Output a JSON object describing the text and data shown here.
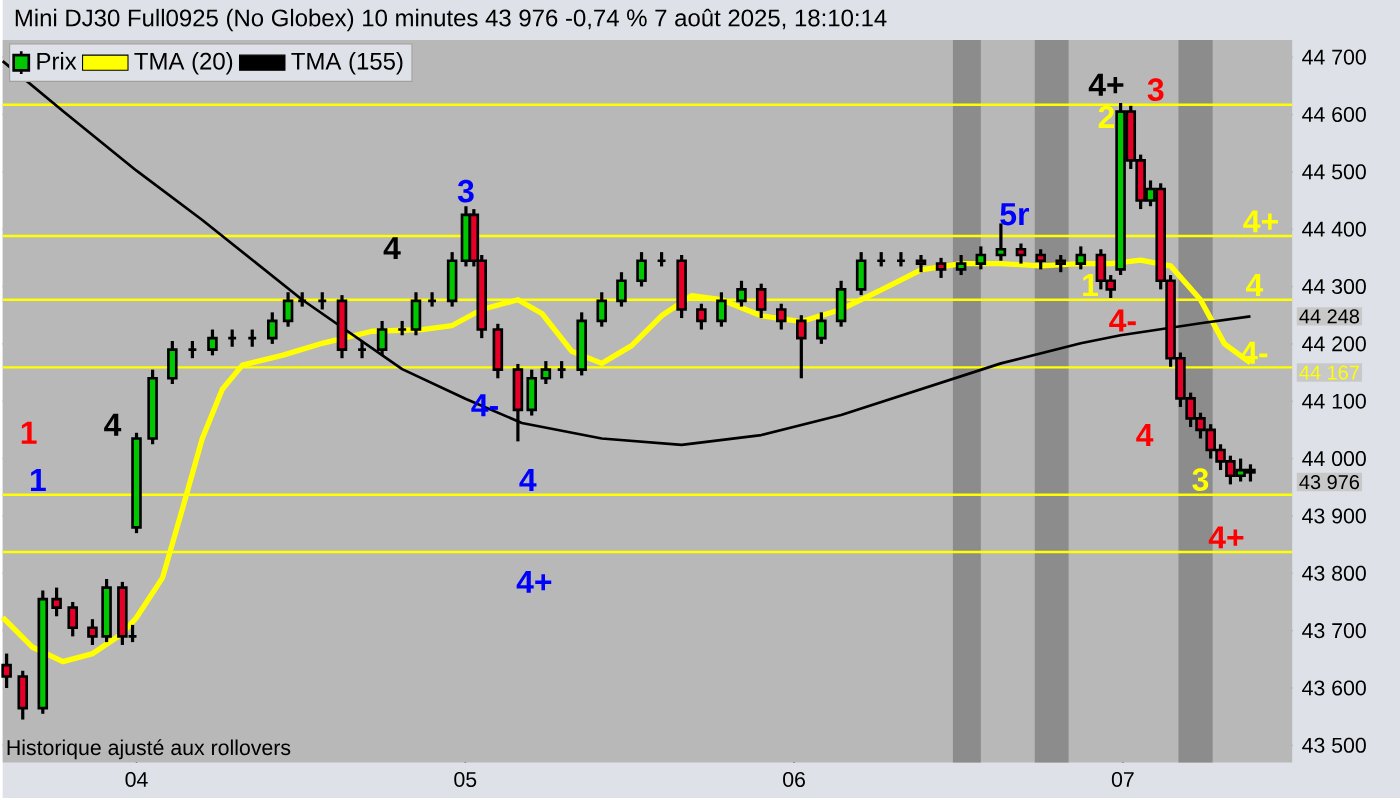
{
  "chart_data": {
    "type": "candlestick",
    "title": "Mini DJ30 Full0925 (No Globex) 10 minutes 43 976 -0,74 % 7 août 2025, 18:10:14",
    "xlim": [
      3.593,
      7.515
    ],
    "ylim": [
      43470,
      44730
    ],
    "xticks": [
      {
        "value": 4,
        "label": "04"
      },
      {
        "value": 5,
        "label": "05"
      },
      {
        "value": 6,
        "label": "06"
      },
      {
        "value": 7,
        "label": "07"
      }
    ],
    "yticks": [
      {
        "value": 43500,
        "label": "43 500"
      },
      {
        "value": 43600,
        "label": "43 600"
      },
      {
        "value": 43700,
        "label": "43 700"
      },
      {
        "value": 43800,
        "label": "43 800"
      },
      {
        "value": 43900,
        "label": "43 900"
      },
      {
        "value": 44000,
        "label": "44 000"
      },
      {
        "value": 44100,
        "label": "44 100"
      },
      {
        "value": 44200,
        "label": "44 200"
      },
      {
        "value": 44300,
        "label": "44 300"
      },
      {
        "value": 44400,
        "label": "44 400"
      },
      {
        "value": 44500,
        "label": "44 500"
      },
      {
        "value": 44600,
        "label": "44 600"
      },
      {
        "value": 44700,
        "label": "44 700"
      }
    ],
    "grid": true,
    "legend": "top left",
    "series": [
      {
        "name": "Prix",
        "color": "#000000",
        "x": [
          3.605,
          3.654,
          3.715,
          3.757,
          3.806,
          3.866,
          3.909,
          3.957,
          3.988,
          4.0,
          4.049,
          4.109,
          4.17,
          4.231,
          4.291,
          4.352,
          4.413,
          4.461,
          4.504,
          4.565,
          4.625,
          4.686,
          4.747,
          4.808,
          4.85,
          4.899,
          4.96,
          5.002,
          5.026,
          5.05,
          5.099,
          5.16,
          5.202,
          5.245,
          5.293,
          5.354,
          5.415,
          5.475,
          5.536,
          5.597,
          5.658,
          5.718,
          5.779,
          5.84,
          5.9,
          5.961,
          6.022,
          6.083,
          6.143,
          6.204,
          6.265,
          6.325,
          6.386,
          6.447,
          6.508,
          6.568,
          6.629,
          6.69,
          6.75,
          6.811,
          6.872,
          6.933,
          6.963,
          6.993,
          7.024,
          7.054,
          7.084,
          7.115,
          7.145,
          7.175,
          7.206,
          7.236,
          7.267,
          7.297,
          7.327,
          7.358,
          7.388
        ],
        "ohlc": [
          [
            43640,
            43660,
            43600,
            43620
          ],
          [
            43620,
            43630,
            43545,
            43565
          ],
          [
            43565,
            43770,
            43555,
            43755
          ],
          [
            43755,
            43775,
            43725,
            43740
          ],
          [
            43740,
            43750,
            43690,
            43705
          ],
          [
            43705,
            43720,
            43675,
            43690
          ],
          [
            43690,
            43790,
            43680,
            43775
          ],
          [
            43775,
            43785,
            43675,
            43690
          ],
          [
            43690,
            43710,
            43680,
            43690
          ],
          [
            43880,
            44045,
            43870,
            44035
          ],
          [
            44035,
            44155,
            44025,
            44140
          ],
          [
            44140,
            44205,
            44130,
            44190
          ],
          [
            44190,
            44205,
            44175,
            44190
          ],
          [
            44190,
            44225,
            44180,
            44210
          ],
          [
            44210,
            44225,
            44195,
            44210
          ],
          [
            44210,
            44225,
            44195,
            44210
          ],
          [
            44210,
            44255,
            44200,
            44240
          ],
          [
            44240,
            44290,
            44230,
            44275
          ],
          [
            44275,
            44290,
            44265,
            44275
          ],
          [
            44275,
            44290,
            44260,
            44275
          ],
          [
            44275,
            44285,
            44175,
            44190
          ],
          [
            44190,
            44205,
            44175,
            44190
          ],
          [
            44190,
            44240,
            44180,
            44225
          ],
          [
            44225,
            44240,
            44215,
            44225
          ],
          [
            44225,
            44290,
            44215,
            44275
          ],
          [
            44275,
            44290,
            44265,
            44275
          ],
          [
            44275,
            44360,
            44265,
            44345
          ],
          [
            44345,
            44440,
            44335,
            44425
          ],
          [
            44425,
            44435,
            44335,
            44345
          ],
          [
            44345,
            44355,
            44210,
            44225
          ],
          [
            44225,
            44235,
            44140,
            44155
          ],
          [
            44155,
            44165,
            44030,
            44085
          ],
          [
            44085,
            44155,
            44075,
            44140
          ],
          [
            44140,
            44170,
            44130,
            44155
          ],
          [
            44155,
            44170,
            44140,
            44155
          ],
          [
            44155,
            44255,
            44145,
            44240
          ],
          [
            44240,
            44290,
            44230,
            44275
          ],
          [
            44275,
            44325,
            44265,
            44310
          ],
          [
            44310,
            44360,
            44300,
            44345
          ],
          [
            44345,
            44360,
            44335,
            44345
          ],
          [
            44345,
            44355,
            44245,
            44260
          ],
          [
            44260,
            44270,
            44225,
            44240
          ],
          [
            44240,
            44290,
            44230,
            44275
          ],
          [
            44275,
            44310,
            44265,
            44295
          ],
          [
            44295,
            44305,
            44245,
            44260
          ],
          [
            44260,
            44270,
            44225,
            44240
          ],
          [
            44240,
            44250,
            44140,
            44210
          ],
          [
            44210,
            44255,
            44200,
            44240
          ],
          [
            44240,
            44310,
            44230,
            44295
          ],
          [
            44295,
            44360,
            44285,
            44345
          ],
          [
            44345,
            44360,
            44335,
            44345
          ],
          [
            44345,
            44360,
            44335,
            44345
          ],
          [
            44345,
            44355,
            44325,
            44340
          ],
          [
            44340,
            44350,
            44315,
            44330
          ],
          [
            44330,
            44355,
            44320,
            44340
          ],
          [
            44340,
            44370,
            44330,
            44355
          ],
          [
            44355,
            44410,
            44345,
            44365
          ],
          [
            44365,
            44375,
            44340,
            44355
          ],
          [
            44355,
            44365,
            44330,
            44345
          ],
          [
            44345,
            44355,
            44325,
            44340
          ],
          [
            44340,
            44370,
            44330,
            44355
          ],
          [
            44355,
            44365,
            44295,
            44310
          ],
          [
            44310,
            44320,
            44280,
            44295
          ],
          [
            44330,
            44620,
            44320,
            44605
          ],
          [
            44605,
            44615,
            44505,
            44520
          ],
          [
            44520,
            44530,
            44435,
            44450
          ],
          [
            44450,
            44485,
            44440,
            44470
          ],
          [
            44470,
            44480,
            44295,
            44310
          ],
          [
            44310,
            44320,
            44160,
            44175
          ],
          [
            44175,
            44185,
            44090,
            44105
          ],
          [
            44105,
            44115,
            44055,
            44070
          ],
          [
            44070,
            44080,
            44035,
            44050
          ],
          [
            44050,
            44060,
            44000,
            44015
          ],
          [
            44015,
            44025,
            43980,
            43995
          ],
          [
            43995,
            44005,
            43955,
            43970
          ],
          [
            43970,
            44000,
            43960,
            43980
          ],
          [
            43980,
            43990,
            43960,
            43976
          ]
        ]
      },
      {
        "name": "TMA (20)",
        "type": "line",
        "color": "#ffff00",
        "x": [
          3.593,
          3.684,
          3.776,
          3.867,
          3.957,
          4.0,
          4.079,
          4.14,
          4.2,
          4.261,
          4.322,
          4.443,
          4.565,
          4.716,
          4.868,
          4.96,
          5.05,
          5.16,
          5.233,
          5.324,
          5.415,
          5.506,
          5.597,
          5.688,
          5.779,
          5.9,
          6.022,
          6.143,
          6.265,
          6.386,
          6.508,
          6.629,
          6.75,
          6.872,
          6.963,
          7.054,
          7.145,
          7.236,
          7.309,
          7.388
        ],
        "values": [
          43723,
          43671,
          43646,
          43660,
          43695,
          43723,
          43792,
          43913,
          44035,
          44121,
          44163,
          44180,
          44201,
          44222,
          44225,
          44232,
          44260,
          44277,
          44253,
          44187,
          44166,
          44197,
          44249,
          44284,
          44277,
          44249,
          44239,
          44260,
          44294,
          44329,
          44340,
          44340,
          44336,
          44340,
          44340,
          44346,
          44336,
          44277,
          44200,
          44167
        ]
      },
      {
        "name": "TMA (155)",
        "type": "line",
        "color": "#000000",
        "x": [
          3.593,
          3.776,
          4.0,
          4.2,
          4.504,
          4.808,
          5.002,
          5.172,
          5.415,
          5.658,
          5.9,
          6.143,
          6.386,
          6.629,
          6.872,
          6.993,
          7.236,
          7.388
        ],
        "values": [
          44693,
          44606,
          44502,
          44416,
          44277,
          44156,
          44104,
          44062,
          44035,
          44024,
          44041,
          44076,
          44121,
          44166,
          44201,
          44215,
          44236,
          44248
        ]
      }
    ],
    "ref_lines": [
      {
        "axis": "y",
        "value": 44617,
        "color": "#ffff00"
      },
      {
        "axis": "y",
        "value": 44388,
        "color": "#ffff00"
      },
      {
        "axis": "y",
        "value": 44277,
        "color": "#ffff00"
      },
      {
        "axis": "y",
        "value": 44159,
        "color": "#ffff00"
      },
      {
        "axis": "y",
        "value": 43937,
        "color": "#ffff00"
      },
      {
        "axis": "y",
        "value": 43837,
        "color": "#ffff00"
      }
    ],
    "bands": [
      {
        "axis": "x",
        "from": 6.483,
        "to": 6.568,
        "color": "#8c8c8c"
      },
      {
        "axis": "x",
        "from": 6.732,
        "to": 6.835,
        "color": "#8c8c8c"
      },
      {
        "axis": "x",
        "from": 7.169,
        "to": 7.273,
        "color": "#8c8c8c"
      }
    ],
    "annotations": [
      "1",
      {
        "text": "1",
        "x": 3.7,
        "y": 43937
      },
      "4",
      "4",
      {
        "text": "3",
        "x": 5.002,
        "y": 44440
      },
      "4-",
      {
        "text": "4",
        "x": 5.19,
        "y": 43937
      },
      "4+",
      "5r",
      "4+",
      "2",
      {
        "text": "3",
        "x": 7.1,
        "y": 44617
      },
      {
        "text": "1",
        "x": 6.9,
        "y": 44277
      },
      {
        "text": "4-",
        "x": 7.0,
        "y": 44215
      },
      "4",
      {
        "text": "3",
        "x": 7.236,
        "y": 43937
      },
      {
        "text": "4+",
        "x": 7.315,
        "y": 43837
      },
      {
        "text": "4+",
        "x": 7.42,
        "y": 44388
      },
      {
        "text": "4",
        "x": 7.4,
        "y": 44277
      },
      {
        "text": "4-",
        "x": 7.4,
        "y": 44159
      },
      {
        "text": "44 248",
        "x": 7.388,
        "y": 44248
      },
      {
        "text": "44 167",
        "x": 7.388,
        "y": 44167
      },
      {
        "text": "43 976",
        "x": 7.388,
        "y": 43976
      },
      "Historique ajusté aux rollovers"
    ]
  }
}
